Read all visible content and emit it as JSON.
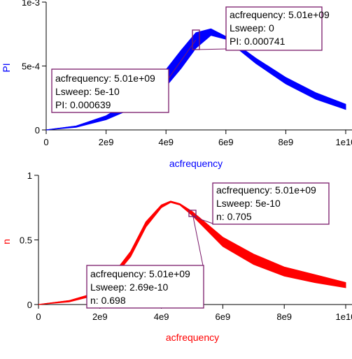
{
  "chart_data": [
    {
      "type": "line",
      "xlabel": "acfrequency",
      "ylabel": "PI",
      "x_ticks": [
        "0",
        "2e9",
        "4e9",
        "6e9",
        "8e9",
        "1e10"
      ],
      "x_tick_values": [
        0,
        2000000000.0,
        4000000000.0,
        6000000000.0,
        8000000000.0,
        10000000000.0
      ],
      "y_ticks": [
        "0",
        "5e-4",
        "1e-3"
      ],
      "y_tick_values": [
        0,
        0.0005,
        0.001
      ],
      "xlim": [
        0,
        10000000000.0
      ],
      "ylim": [
        0,
        0.001
      ],
      "grid": false,
      "color": "#0000ff",
      "x": [
        0,
        1000000000.0,
        2000000000.0,
        3000000000.0,
        4000000000.0,
        4500000000.0,
        5000000000.0,
        5500000000.0,
        6000000000.0,
        7000000000.0,
        8000000000.0,
        9000000000.0,
        10000000000.0
      ],
      "band_upper": [
        0,
        3e-05,
        0.00011,
        0.00025,
        0.00047,
        0.00062,
        0.00076,
        0.00079,
        0.00073,
        0.00056,
        0.00041,
        0.00029,
        0.0002
      ],
      "band_lower": [
        0,
        2e-05,
        8e-05,
        0.00018,
        0.00034,
        0.00048,
        0.00064,
        0.00074,
        0.00071,
        0.00052,
        0.00036,
        0.00024,
        0.00016
      ],
      "annotations": [
        {
          "lines": [
            "acfrequency: 5.01e+09",
            "Lsweep: 0",
            "PI: 0.000741"
          ],
          "x": 5010000000.0,
          "y": 0.000741
        },
        {
          "lines": [
            "acfrequency: 5.01e+09",
            "Lsweep: 5e-10",
            "PI: 0.000639"
          ],
          "x": 5010000000.0,
          "y": 0.000639
        }
      ]
    },
    {
      "type": "line",
      "xlabel": "acfrequency",
      "ylabel": "n",
      "x_ticks": [
        "0",
        "2e9",
        "4e9",
        "6e9",
        "8e9",
        "1e10"
      ],
      "x_tick_values": [
        0,
        2000000000.0,
        4000000000.0,
        6000000000.0,
        8000000000.0,
        10000000000.0
      ],
      "y_ticks": [
        "0",
        "0.5",
        "1"
      ],
      "y_tick_values": [
        0,
        0.5,
        1
      ],
      "xlim": [
        0,
        10000000000.0
      ],
      "ylim": [
        0,
        1
      ],
      "grid": false,
      "color": "#ff0000",
      "x": [
        0,
        1000000000.0,
        2000000000.0,
        3000000000.0,
        3500000000.0,
        4000000000.0,
        4300000000.0,
        4600000000.0,
        5000000000.0,
        6000000000.0,
        7000000000.0,
        8000000000.0,
        9000000000.0,
        10000000000.0
      ],
      "band_upper": [
        0,
        0.03,
        0.1,
        0.41,
        0.64,
        0.77,
        0.8,
        0.78,
        0.72,
        0.52,
        0.39,
        0.29,
        0.23,
        0.17
      ],
      "band_lower": [
        0,
        0.02,
        0.08,
        0.37,
        0.6,
        0.75,
        0.79,
        0.77,
        0.69,
        0.45,
        0.31,
        0.22,
        0.17,
        0.13
      ],
      "annotations": [
        {
          "lines": [
            "acfrequency: 5.01e+09",
            "Lsweep: 5e-10",
            "n: 0.705"
          ],
          "x": 5010000000.0,
          "y": 0.705
        },
        {
          "lines": [
            "acfrequency: 5.01e+09",
            "Lsweep: 2.69e-10",
            "n: 0.698"
          ],
          "x": 5010000000.0,
          "y": 0.698
        }
      ]
    }
  ]
}
